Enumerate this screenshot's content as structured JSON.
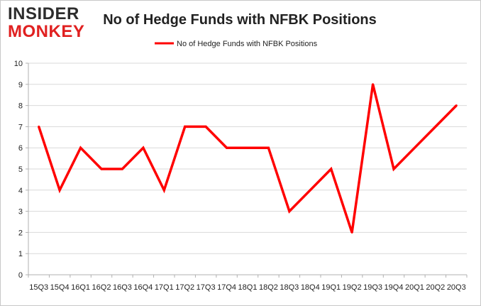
{
  "logo": {
    "line1": "INSIDER",
    "line2": "MONKEY"
  },
  "colors": {
    "series": "#ff0000",
    "logo_dark": "#2d2d2d",
    "logo_red": "#e02020",
    "grid": "#d9d9d9",
    "axis": "#b0b0b0",
    "text": "#222222"
  },
  "chart_data": {
    "type": "line",
    "title": "No of Hedge Funds with NFBK Positions",
    "xlabel": "",
    "ylabel": "",
    "ylim": [
      0,
      10
    ],
    "yticks": [
      0,
      1,
      2,
      3,
      4,
      5,
      6,
      7,
      8,
      9,
      10
    ],
    "grid": true,
    "legend_position": "top-center",
    "categories": [
      "15Q3",
      "15Q4",
      "16Q1",
      "16Q2",
      "16Q3",
      "16Q4",
      "17Q1",
      "17Q2",
      "17Q3",
      "17Q4",
      "18Q1",
      "18Q2",
      "18Q3",
      "18Q4",
      "19Q1",
      "19Q2",
      "19Q3",
      "19Q4",
      "20Q1",
      "20Q2",
      "20Q3"
    ],
    "series": [
      {
        "name": "No of Hedge Funds with NFBK Positions",
        "values": [
          7,
          4,
          6,
          5,
          5,
          6,
          4,
          7,
          7,
          6,
          6,
          6,
          3,
          4,
          5,
          2,
          9,
          5,
          6,
          7,
          8
        ]
      }
    ]
  }
}
